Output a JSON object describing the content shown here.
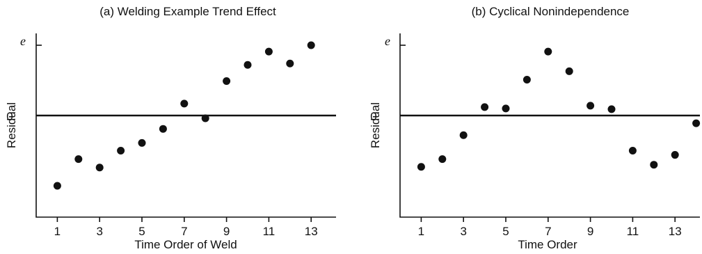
{
  "chart_data": [
    {
      "type": "scatter",
      "title": "(a) Welding Example Trend Effect",
      "xlabel": "Time Order of Weld",
      "ylabel": "Residual",
      "y_axis_top_label": "e",
      "y_zero_label": "0",
      "xticks": [
        "1",
        "3",
        "5",
        "7",
        "9",
        "11",
        "13"
      ],
      "xlim": [
        0,
        14.5
      ],
      "ylim": [
        -1.35,
        1.0
      ],
      "zero_line": true,
      "grid": false,
      "points": [
        {
          "x": 1,
          "y": -1.0
        },
        {
          "x": 2,
          "y": -0.62
        },
        {
          "x": 3,
          "y": -0.74
        },
        {
          "x": 4,
          "y": -0.5
        },
        {
          "x": 5,
          "y": -0.39
        },
        {
          "x": 6,
          "y": -0.19
        },
        {
          "x": 7,
          "y": 0.17
        },
        {
          "x": 8,
          "y": -0.04
        },
        {
          "x": 9,
          "y": 0.49
        },
        {
          "x": 10,
          "y": 0.72
        },
        {
          "x": 11,
          "y": 0.91
        },
        {
          "x": 12,
          "y": 0.74
        },
        {
          "x": 13,
          "y": 1.0
        }
      ]
    },
    {
      "type": "scatter",
      "title": "(b) Cyclical Nonindependence",
      "xlabel": "Time Order",
      "ylabel": "Residual",
      "y_axis_top_label": "e",
      "y_zero_label": "0",
      "xticks": [
        "1",
        "3",
        "5",
        "7",
        "9",
        "11",
        "13"
      ],
      "xlim": [
        0,
        14.5
      ],
      "ylim": [
        -1.35,
        1.0
      ],
      "zero_line": true,
      "grid": false,
      "points": [
        {
          "x": 1,
          "y": -0.73
        },
        {
          "x": 2,
          "y": -0.62
        },
        {
          "x": 3,
          "y": -0.28
        },
        {
          "x": 4,
          "y": 0.12
        },
        {
          "x": 5,
          "y": 0.1
        },
        {
          "x": 6,
          "y": 0.51
        },
        {
          "x": 7,
          "y": 0.91
        },
        {
          "x": 8,
          "y": 0.63
        },
        {
          "x": 9,
          "y": 0.14
        },
        {
          "x": 10,
          "y": 0.09
        },
        {
          "x": 11,
          "y": -0.5
        },
        {
          "x": 12,
          "y": -0.7
        },
        {
          "x": 13,
          "y": -0.56
        },
        {
          "x": 14,
          "y": -0.11
        }
      ]
    }
  ]
}
